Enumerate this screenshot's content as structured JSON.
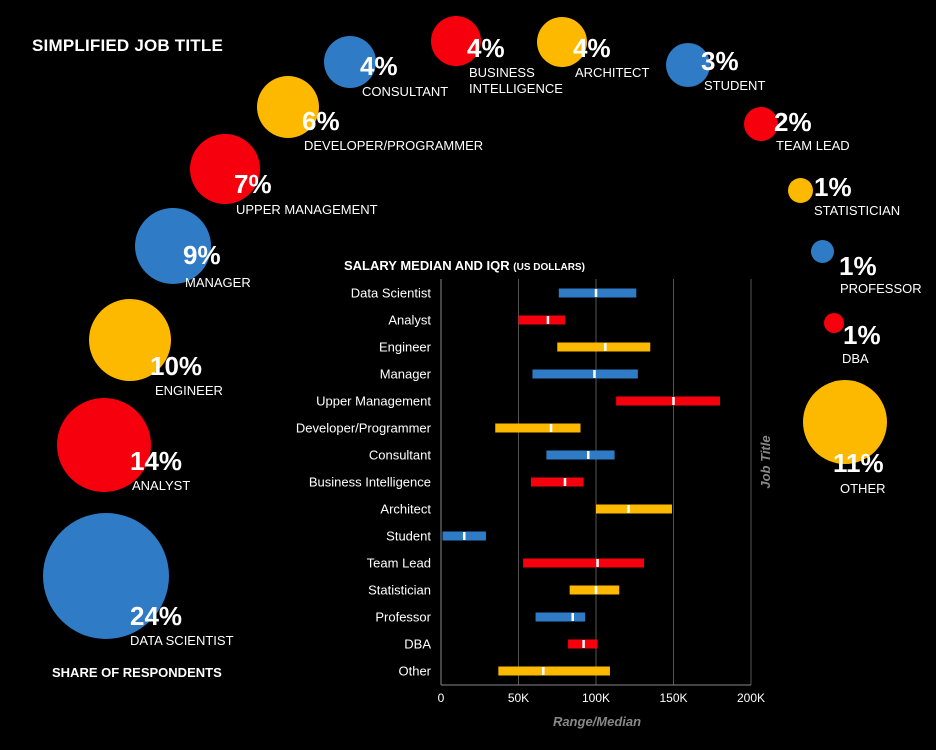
{
  "page": {
    "title": "SIMPLIFIED JOB TITLE",
    "share_label": "SHARE OF RESPONDENTS"
  },
  "colors": {
    "blue": "#2F7BC6",
    "red": "#F7000E",
    "yellow": "#FDB900",
    "median": "#FFFFFF"
  },
  "bubbles": [
    {
      "pct": "24%",
      "label": "DATA SCIENTIST",
      "color": "blue"
    },
    {
      "pct": "14%",
      "label": "ANALYST",
      "color": "red"
    },
    {
      "pct": "10%",
      "label": "ENGINEER",
      "color": "yellow"
    },
    {
      "pct": "9%",
      "label": "MANAGER",
      "color": "blue"
    },
    {
      "pct": "7%",
      "label": "UPPER MANAGEMENT",
      "color": "red"
    },
    {
      "pct": "6%",
      "label": "DEVELOPER/PROGRAMMER",
      "color": "yellow"
    },
    {
      "pct": "4%",
      "label": "CONSULTANT",
      "color": "blue"
    },
    {
      "pct": "4%",
      "label": "BUSINESS",
      "label2": "INTELLIGENCE",
      "color": "red"
    },
    {
      "pct": "4%",
      "label": "ARCHITECT",
      "color": "yellow"
    },
    {
      "pct": "3%",
      "label": "STUDENT",
      "color": "blue"
    },
    {
      "pct": "2%",
      "label": "TEAM LEAD",
      "color": "red"
    },
    {
      "pct": "1%",
      "label": "STATISTICIAN",
      "color": "yellow"
    },
    {
      "pct": "1%",
      "label": "PROFESSOR",
      "color": "blue"
    },
    {
      "pct": "1%",
      "label": "DBA",
      "color": "red"
    },
    {
      "pct": "11%",
      "label": "OTHER",
      "color": "yellow"
    }
  ],
  "salary": {
    "title": "SALARY MEDIAN AND IQR",
    "title_sub": "(US DOLLARS)"
  },
  "chart_data": {
    "type": "bar",
    "title": "SALARY MEDIAN AND IQR (US DOLLARS)",
    "xlabel": "Range/Median",
    "ylabel": "Job Title",
    "xlim": [
      0,
      200000
    ],
    "xticks": [
      0,
      50000,
      100000,
      150000,
      200000
    ],
    "xtick_labels": [
      "0",
      "50K",
      "100K",
      "150K",
      "200K"
    ],
    "grid": true,
    "categories": [
      "Data Scientist",
      "Analyst",
      "Engineer",
      "Manager",
      "Upper Management",
      "Developer/Programmer",
      "Consultant",
      "Business Intelligence",
      "Architect",
      "Student",
      "Team Lead",
      "Statistician",
      "Professor",
      "DBA",
      "Other"
    ],
    "series": [
      {
        "name": "IQR low",
        "values": [
          76000,
          50000,
          75000,
          59000,
          113000,
          35000,
          68000,
          58000,
          100000,
          1000,
          53000,
          83000,
          61000,
          82000,
          37000
        ]
      },
      {
        "name": "IQR high",
        "values": [
          126000,
          80000,
          135000,
          127000,
          180000,
          90000,
          112000,
          92000,
          149000,
          29000,
          131000,
          115000,
          93000,
          101000,
          109000
        ]
      },
      {
        "name": "Median",
        "values": [
          100000,
          69000,
          106000,
          99000,
          150000,
          71000,
          95000,
          80000,
          121000,
          15000,
          101000,
          100000,
          85000,
          92000,
          66000
        ]
      }
    ],
    "colors": [
      "blue",
      "red",
      "yellow",
      "blue",
      "red",
      "yellow",
      "blue",
      "red",
      "yellow",
      "blue",
      "red",
      "yellow",
      "blue",
      "red",
      "yellow"
    ]
  }
}
